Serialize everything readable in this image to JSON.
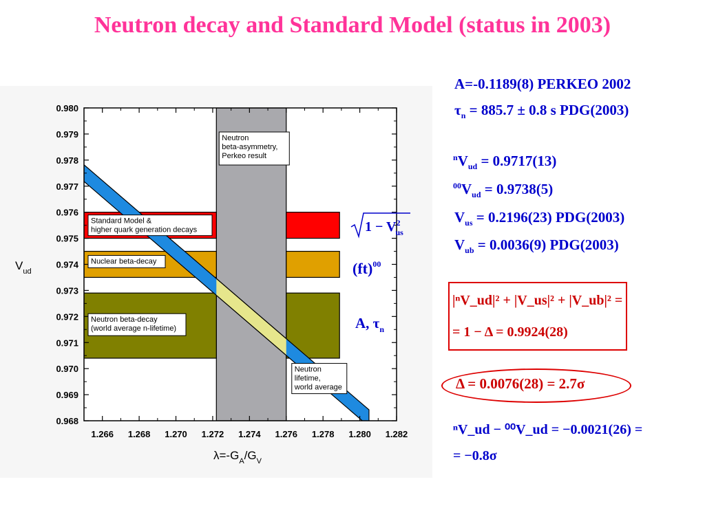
{
  "title": "Neutron decay and Standard Model (status in 2003)",
  "chart_data": {
    "type": "area",
    "title": "",
    "xlabel": "λ=-G_A/G_V",
    "ylabel": "V_ud",
    "xlim": [
      1.265,
      1.282
    ],
    "ylim": [
      0.968,
      0.98
    ],
    "x_ticks": [
      "1.266",
      "1.268",
      "1.270",
      "1.272",
      "1.274",
      "1.276",
      "1.278",
      "1.280",
      "1.282"
    ],
    "y_ticks": [
      "0.980",
      "0.979",
      "0.978",
      "0.977",
      "0.976",
      "0.975",
      "0.974",
      "0.973",
      "0.972",
      "0.971",
      "0.970",
      "0.969",
      "0.968"
    ],
    "vertical_band": {
      "label": "Neutron beta-asymmetry, Perkeo result",
      "x_min": 1.2722,
      "x_max": 1.276,
      "color": "#a9a9ad"
    },
    "horizontal_bands": [
      {
        "label": "Standard Model & higher quark generation decays",
        "y_min": 0.975,
        "y_max": 0.976,
        "x_min": 1.265,
        "x_max": 1.2789,
        "color": "#ff0000"
      },
      {
        "label": "Nuclear beta-decay",
        "y_min": 0.9735,
        "y_max": 0.9745,
        "x_min": 1.265,
        "x_max": 1.2789,
        "color": "#e0a000"
      },
      {
        "label": "Neutron beta-decay (world average n-lifetime)",
        "y_min": 0.9704,
        "y_max": 0.9729,
        "x_min": 1.265,
        "x_max": 1.2789,
        "color": "#808000"
      }
    ],
    "lifetime_band": {
      "label": "Neutron lifetime, world average",
      "color": "#1e8ae0",
      "overlap_color": "#e6e68c",
      "center": [
        [
          1.265,
          0.9775
        ],
        [
          1.2805,
          0.9681
        ]
      ],
      "half_width": 0.00032
    },
    "right_labels": [
      "√(1−V_us²)",
      "(ft)⁰⁰",
      "A, τ_n"
    ]
  },
  "equations": {
    "A": "A=-0.1189(8)   PERKEO 2002",
    "tau_sym": "τ",
    "tau_sub": "n",
    "tau_rest": " = 885.7 ± 0.8 s   PDG(2003)",
    "vud_n_sup": "n",
    "vud_n_sym": "V",
    "vud_n_sub": "ud",
    "vud_n_rest": " = 0.9717(13)",
    "vud_00_sup": "00",
    "vud_00_sym": "V",
    "vud_00_sub": "ud",
    "vud_00_rest": " = 0.9738(5)",
    "vus_sym": "V",
    "vus_sub": "us",
    "vus_rest": " = 0.2196(23)   PDG(2003)",
    "vub_sym": "V",
    "vub_sub": "ub",
    "vub_rest": " = 0.0036(9)   PDG(2003)",
    "unitarity_line1": "|ⁿV_ud|² + |V_us|² + |V_ub|² =",
    "unitarity_line2": "= 1 − Δ = 0.9924(28)",
    "delta": "Δ = 0.0076(28) = 2.7σ",
    "diff_line1": "ⁿV_ud − ⁰⁰V_ud = −0.0021(26) =",
    "diff_line2": "= −0.8σ"
  }
}
